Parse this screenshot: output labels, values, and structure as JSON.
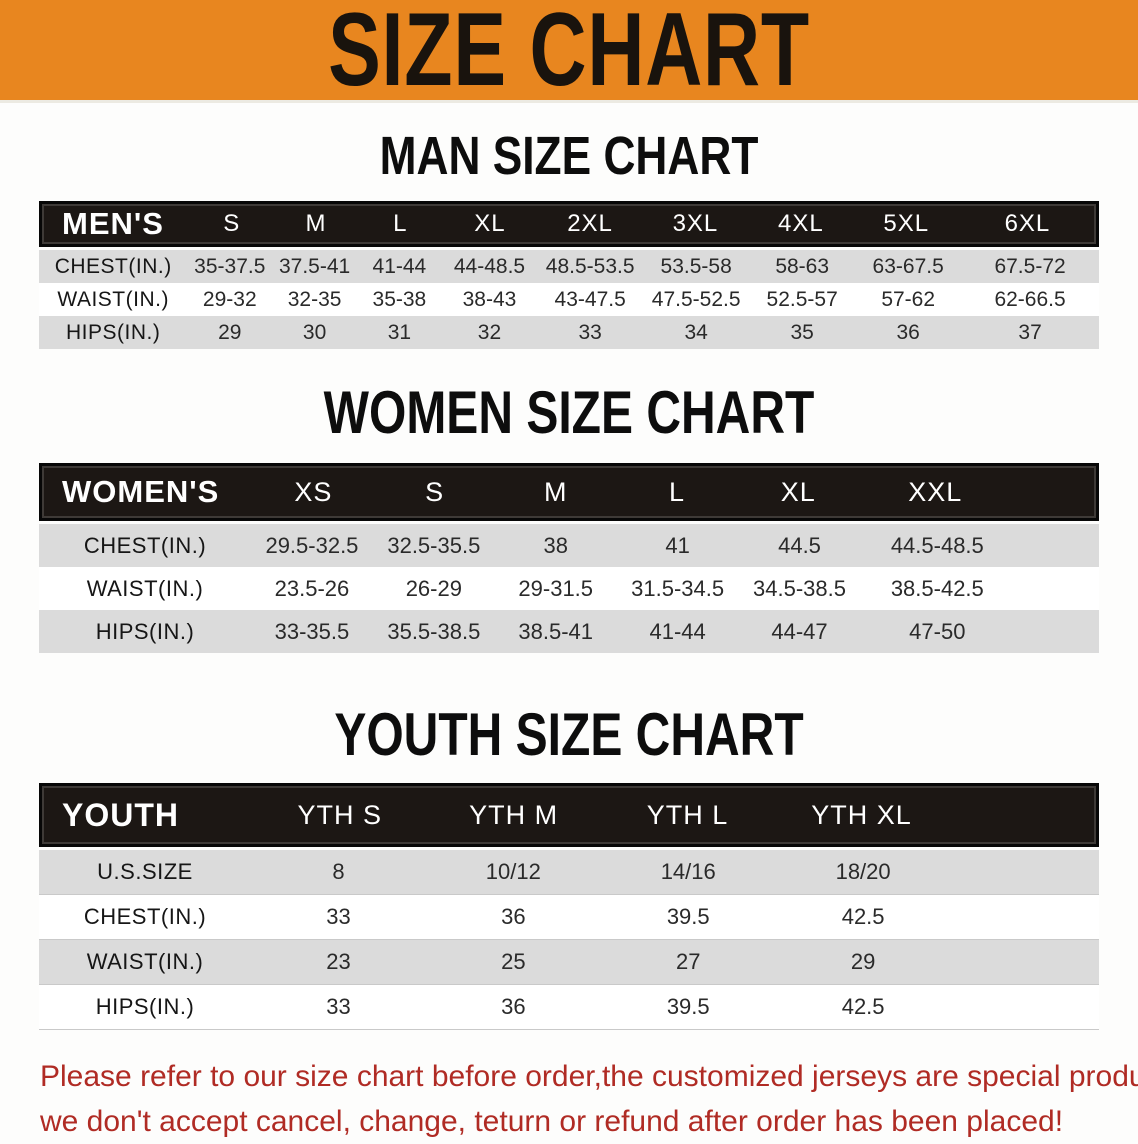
{
  "banner": {
    "title": "SIZE CHART"
  },
  "colors": {
    "banner_orange": "#E8861F",
    "header_black": "#1C1714",
    "row_gray": "#DBDBDB",
    "note_red": "#B02B24"
  },
  "men": {
    "heading": "MAN SIZE CHART",
    "group_label": "MEN'S",
    "columns": [
      "S",
      "M",
      "L",
      "XL",
      "2XL",
      "3XL",
      "4XL",
      "5XL",
      "6XL"
    ],
    "rows": [
      {
        "label": "CHEST(IN.)",
        "values": [
          "35-37.5",
          "37.5-41",
          "41-44",
          "44-48.5",
          "48.5-53.5",
          "53.5-58",
          "58-63",
          "63-67.5",
          "67.5-72"
        ]
      },
      {
        "label": "WAIST(IN.)",
        "values": [
          "29-32",
          "32-35",
          "35-38",
          "38-43",
          "43-47.5",
          "47.5-52.5",
          "52.5-57",
          "57-62",
          "62-66.5"
        ]
      },
      {
        "label": "HIPS(IN.)",
        "values": [
          "29",
          "30",
          "31",
          "32",
          "33",
          "34",
          "35",
          "36",
          "37"
        ]
      }
    ]
  },
  "women": {
    "heading": "WOMEN SIZE CHART",
    "group_label": "WOMEN'S",
    "columns": [
      "XS",
      "S",
      "M",
      "L",
      "XL",
      "XXL"
    ],
    "rows": [
      {
        "label": "CHEST(IN.)",
        "values": [
          "29.5-32.5",
          "32.5-35.5",
          "38",
          "41",
          "44.5",
          "44.5-48.5"
        ]
      },
      {
        "label": "WAIST(IN.)",
        "values": [
          "23.5-26",
          "26-29",
          "29-31.5",
          "31.5-34.5",
          "34.5-38.5",
          "38.5-42.5"
        ]
      },
      {
        "label": "HIPS(IN.)",
        "values": [
          "33-35.5",
          "35.5-38.5",
          "38.5-41",
          "41-44",
          "44-47",
          "47-50"
        ]
      }
    ]
  },
  "youth": {
    "heading": "YOUTH SIZE CHART",
    "group_label": "YOUTH",
    "columns": [
      "YTH S",
      "YTH M",
      "YTH L",
      "YTH XL"
    ],
    "rows": [
      {
        "label": "U.S.SIZE",
        "values": [
          "8",
          "10/12",
          "14/16",
          "18/20"
        ]
      },
      {
        "label": "CHEST(IN.)",
        "values": [
          "33",
          "36",
          "39.5",
          "42.5"
        ]
      },
      {
        "label": "WAIST(IN.)",
        "values": [
          "23",
          "25",
          "27",
          "29"
        ]
      },
      {
        "label": "HIPS(IN.)",
        "values": [
          "33",
          "36",
          "39.5",
          "42.5"
        ]
      }
    ]
  },
  "footer": {
    "line1": "Please refer to our size chart before order,the customized jerseys are special products,",
    "line2": "we don't accept cancel, change, teturn or refund after order has been placed!"
  }
}
